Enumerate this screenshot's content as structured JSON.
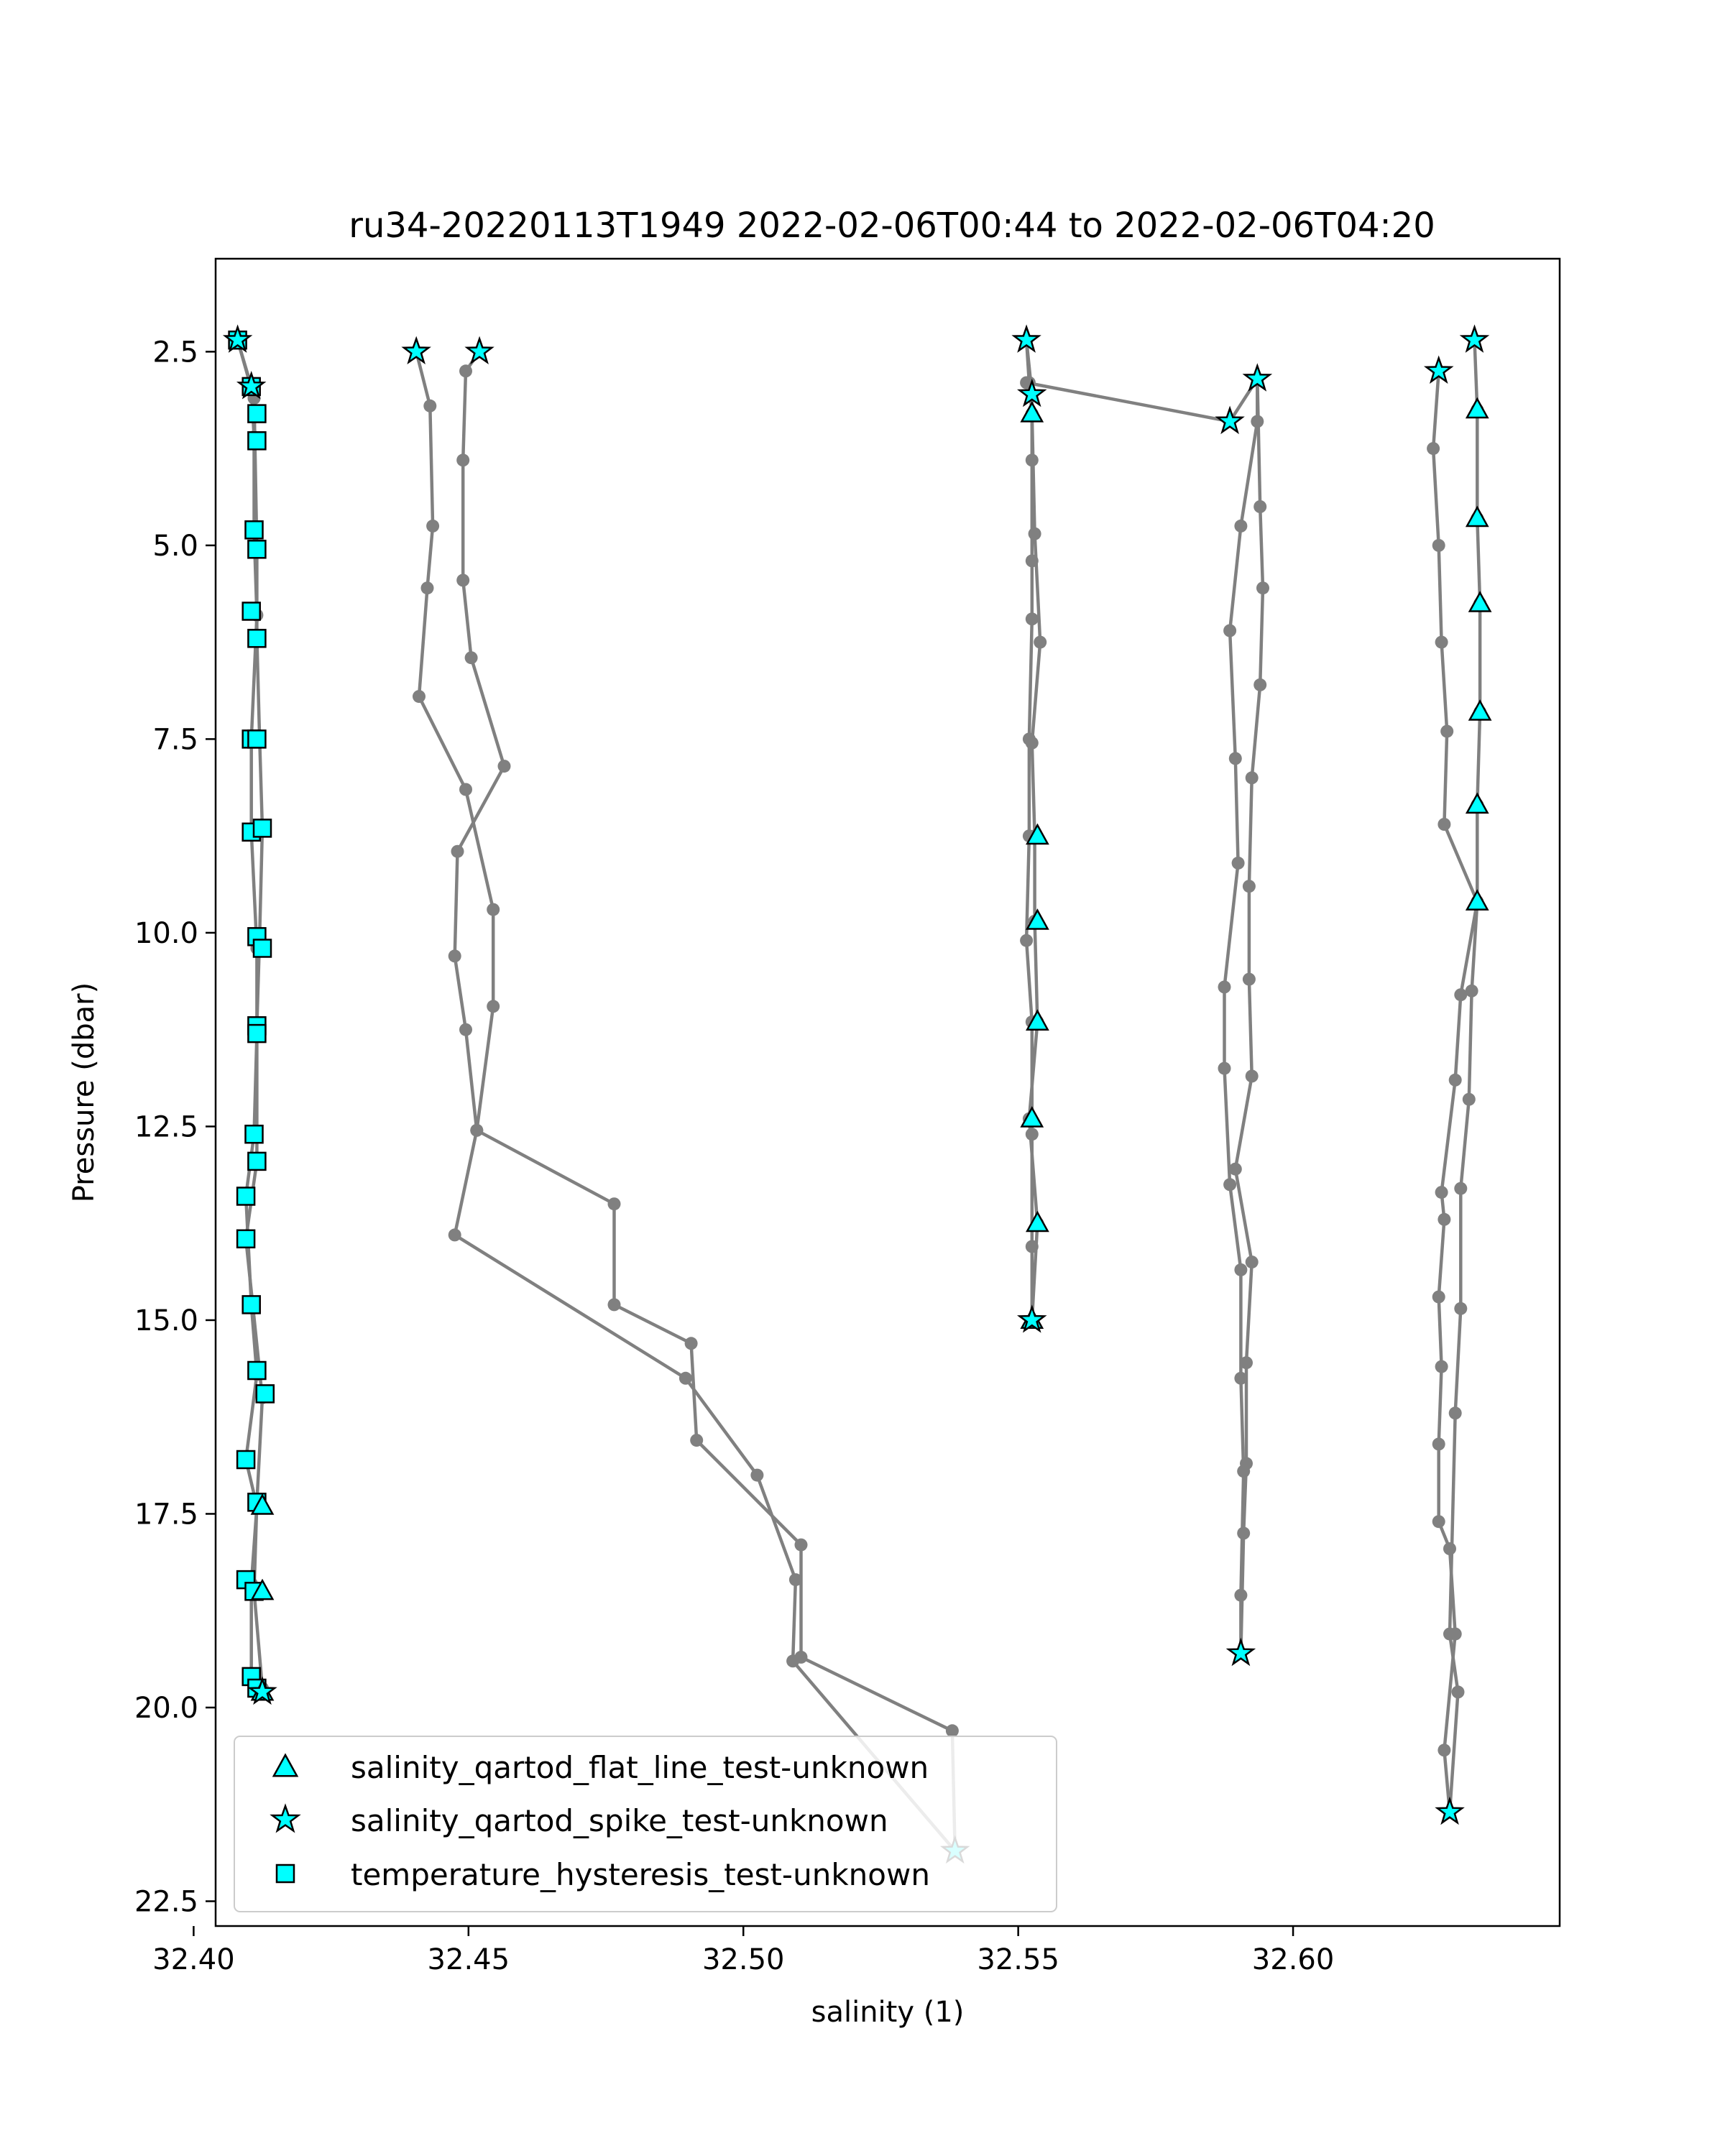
{
  "chart_data": {
    "type": "line",
    "title": "ru34-20220113T1949 2022-02-06T00:44 to 2022-02-06T04:20",
    "xlabel": "salinity (1)",
    "ylabel": "Pressure (dbar)",
    "xlim": [
      32.404,
      32.6485
    ],
    "ylim": [
      22.82,
      1.3
    ],
    "y_inverted": true,
    "grid": false,
    "xticks": [
      32.4,
      32.45,
      32.5,
      32.55,
      32.6
    ],
    "xtick_labels": [
      "32.40",
      "32.45",
      "32.50",
      "32.55",
      "32.60"
    ],
    "yticks": [
      2.5,
      5.0,
      7.5,
      10.0,
      12.5,
      15.0,
      17.5,
      20.0,
      22.5
    ],
    "ytick_labels": [
      "2.5",
      "5.0",
      "7.5",
      "10.0",
      "12.5",
      "15.0",
      "17.5",
      "20.0",
      "22.5"
    ],
    "line_color": "#808080",
    "marker_color": "#00ffff",
    "legend_position": "lower-left",
    "legend": [
      {
        "label": "salinity_qartod_flat_line_test-unknown",
        "marker": "triangle"
      },
      {
        "label": "salinity_qartod_spike_test-unknown",
        "marker": "star"
      },
      {
        "label": "temperature_hysteresis_test-unknown",
        "marker": "square"
      }
    ],
    "profiles": [
      {
        "points": [
          [
            32.408,
            2.35
          ],
          [
            32.4105,
            2.95
          ],
          [
            32.411,
            3.6
          ],
          [
            32.411,
            4.8
          ],
          [
            32.4115,
            5.9
          ],
          [
            32.4105,
            7.5
          ],
          [
            32.4105,
            8.7
          ],
          [
            32.4115,
            10.2
          ],
          [
            32.4115,
            11.3
          ],
          [
            32.411,
            12.6
          ],
          [
            32.4095,
            13.4
          ],
          [
            32.4105,
            14.8
          ],
          [
            32.4115,
            15.7
          ],
          [
            32.4095,
            16.8
          ],
          [
            32.4115,
            17.4
          ],
          [
            32.4105,
            18.4
          ],
          [
            32.4105,
            19.6
          ],
          [
            32.4125,
            19.8
          ]
        ]
      },
      {
        "points": [
          [
            32.408,
            2.35
          ],
          [
            32.411,
            3.1
          ],
          [
            32.4115,
            5.05
          ],
          [
            32.4115,
            6.2
          ],
          [
            32.412,
            7.5
          ],
          [
            32.4125,
            8.65
          ],
          [
            32.412,
            10.05
          ],
          [
            32.4115,
            11.2
          ],
          [
            32.4115,
            12.95
          ],
          [
            32.4095,
            13.95
          ],
          [
            32.4125,
            16.0
          ],
          [
            32.4115,
            17.35
          ],
          [
            32.411,
            18.5
          ],
          [
            32.4125,
            19.75
          ]
        ]
      },
      {
        "points": [
          [
            32.4405,
            2.5
          ],
          [
            32.443,
            3.2
          ],
          [
            32.4435,
            4.75
          ],
          [
            32.4425,
            5.55
          ],
          [
            32.441,
            6.95
          ],
          [
            32.4495,
            8.15
          ],
          [
            32.4545,
            9.7
          ],
          [
            32.4545,
            10.95
          ],
          [
            32.4515,
            12.55
          ],
          [
            32.4765,
            13.5
          ],
          [
            32.4765,
            14.8
          ],
          [
            32.4905,
            15.3
          ],
          [
            32.4915,
            16.55
          ],
          [
            32.5105,
            17.9
          ],
          [
            32.5105,
            19.35
          ],
          [
            32.538,
            20.3
          ],
          [
            32.5385,
            21.85
          ]
        ]
      },
      {
        "points": [
          [
            32.452,
            2.5
          ],
          [
            32.4495,
            2.75
          ],
          [
            32.449,
            3.9
          ],
          [
            32.449,
            5.45
          ],
          [
            32.4505,
            6.45
          ],
          [
            32.4565,
            7.85
          ],
          [
            32.448,
            8.95
          ],
          [
            32.4475,
            10.3
          ],
          [
            32.4495,
            11.25
          ],
          [
            32.4515,
            12.55
          ],
          [
            32.4475,
            13.9
          ],
          [
            32.4895,
            15.75
          ],
          [
            32.5025,
            17.0
          ],
          [
            32.5095,
            18.35
          ],
          [
            32.509,
            19.4
          ],
          [
            32.5385,
            21.85
          ]
        ]
      },
      {
        "points": [
          [
            32.5515,
            2.35
          ],
          [
            32.5525,
            3.05
          ],
          [
            32.5525,
            3.9
          ],
          [
            32.5525,
            5.2
          ],
          [
            32.5525,
            5.95
          ],
          [
            32.552,
            7.5
          ],
          [
            32.552,
            8.75
          ],
          [
            32.5515,
            10.1
          ],
          [
            32.5525,
            11.15
          ],
          [
            32.5525,
            12.6
          ],
          [
            32.5525,
            14.05
          ],
          [
            32.5525,
            15.0
          ]
        ]
      },
      {
        "points": [
          [
            32.5515,
            2.35
          ],
          [
            32.552,
            2.9
          ],
          [
            32.5525,
            3.3
          ],
          [
            32.553,
            4.85
          ],
          [
            32.554,
            6.25
          ],
          [
            32.5525,
            7.55
          ],
          [
            32.553,
            8.75
          ],
          [
            32.553,
            9.85
          ],
          [
            32.5535,
            11.15
          ],
          [
            32.552,
            12.4
          ],
          [
            32.5535,
            13.75
          ],
          [
            32.5525,
            15.0
          ]
        ]
      },
      {
        "points": [
          [
            32.5515,
            2.9
          ],
          [
            32.5885,
            3.4
          ],
          [
            32.5935,
            2.85
          ],
          [
            32.594,
            4.5
          ],
          [
            32.5945,
            5.55
          ],
          [
            32.594,
            6.8
          ],
          [
            32.5925,
            8.0
          ],
          [
            32.592,
            9.4
          ],
          [
            32.592,
            10.6
          ],
          [
            32.5925,
            11.85
          ],
          [
            32.5895,
            13.05
          ],
          [
            32.5925,
            14.25
          ],
          [
            32.5915,
            15.55
          ],
          [
            32.5915,
            16.85
          ],
          [
            32.591,
            17.75
          ],
          [
            32.5905,
            19.3
          ]
        ]
      },
      {
        "points": [
          [
            32.5935,
            2.85
          ],
          [
            32.5935,
            3.4
          ],
          [
            32.5905,
            4.75
          ],
          [
            32.5885,
            6.1
          ],
          [
            32.5895,
            7.75
          ],
          [
            32.59,
            9.1
          ],
          [
            32.5875,
            10.7
          ],
          [
            32.5875,
            11.75
          ],
          [
            32.5885,
            13.25
          ],
          [
            32.5905,
            14.35
          ],
          [
            32.5905,
            15.75
          ],
          [
            32.591,
            16.95
          ],
          [
            32.5905,
            18.55
          ],
          [
            32.5905,
            19.3
          ]
        ]
      },
      {
        "points": [
          [
            32.6265,
            2.75
          ],
          [
            32.6255,
            3.75
          ],
          [
            32.6265,
            5.0
          ],
          [
            32.627,
            6.25
          ],
          [
            32.628,
            7.4
          ],
          [
            32.6275,
            8.6
          ],
          [
            32.6335,
            9.6
          ],
          [
            32.6305,
            10.8
          ],
          [
            32.6295,
            11.9
          ],
          [
            32.627,
            13.35
          ],
          [
            32.6275,
            13.7
          ],
          [
            32.6265,
            14.7
          ],
          [
            32.627,
            15.6
          ],
          [
            32.6265,
            16.6
          ],
          [
            32.6265,
            17.6
          ],
          [
            32.6285,
            17.95
          ],
          [
            32.6295,
            19.05
          ],
          [
            32.6275,
            20.55
          ],
          [
            32.6285,
            21.35
          ]
        ]
      },
      {
        "points": [
          [
            32.633,
            2.35
          ],
          [
            32.6335,
            3.25
          ],
          [
            32.6335,
            4.65
          ],
          [
            32.634,
            5.75
          ],
          [
            32.634,
            7.15
          ],
          [
            32.6335,
            8.35
          ],
          [
            32.6335,
            9.6
          ],
          [
            32.6325,
            10.75
          ],
          [
            32.632,
            12.15
          ],
          [
            32.6305,
            13.3
          ],
          [
            32.6305,
            14.85
          ],
          [
            32.6295,
            16.2
          ],
          [
            32.6285,
            19.05
          ],
          [
            32.63,
            19.8
          ],
          [
            32.6285,
            21.35
          ]
        ]
      }
    ],
    "flat_line_markers": [
      [
        32.5525,
        3.3
      ],
      [
        32.5535,
        8.75
      ],
      [
        32.5535,
        9.85
      ],
      [
        32.5535,
        11.15
      ],
      [
        32.5525,
        12.4
      ],
      [
        32.5535,
        13.75
      ],
      [
        32.5525,
        15.0
      ],
      [
        32.6335,
        3.25
      ],
      [
        32.6335,
        4.65
      ],
      [
        32.634,
        5.75
      ],
      [
        32.634,
        7.15
      ],
      [
        32.6335,
        8.35
      ],
      [
        32.6335,
        9.6
      ],
      [
        32.4125,
        17.4
      ],
      [
        32.4125,
        18.5
      ],
      [
        32.4125,
        19.8
      ]
    ],
    "spike_markers": [
      [
        32.408,
        2.35
      ],
      [
        32.4105,
        2.95
      ],
      [
        32.4405,
        2.5
      ],
      [
        32.452,
        2.5
      ],
      [
        32.5515,
        2.35
      ],
      [
        32.5525,
        3.05
      ],
      [
        32.5885,
        3.4
      ],
      [
        32.5935,
        2.85
      ],
      [
        32.6265,
        2.75
      ],
      [
        32.633,
        2.35
      ],
      [
        32.5525,
        15.0
      ],
      [
        32.5905,
        19.3
      ],
      [
        32.6285,
        21.35
      ],
      [
        32.5385,
        21.85
      ],
      [
        32.4125,
        19.8
      ]
    ],
    "hysteresis_markers": [
      [
        32.408,
        2.35
      ],
      [
        32.4105,
        2.95
      ],
      [
        32.4115,
        3.3
      ],
      [
        32.4115,
        3.65
      ],
      [
        32.411,
        4.8
      ],
      [
        32.4115,
        5.05
      ],
      [
        32.4105,
        5.85
      ],
      [
        32.4115,
        6.2
      ],
      [
        32.4105,
        7.5
      ],
      [
        32.4115,
        7.5
      ],
      [
        32.4105,
        8.7
      ],
      [
        32.4125,
        8.65
      ],
      [
        32.4115,
        10.05
      ],
      [
        32.4125,
        10.2
      ],
      [
        32.4115,
        11.2
      ],
      [
        32.4115,
        11.3
      ],
      [
        32.411,
        12.6
      ],
      [
        32.4115,
        12.95
      ],
      [
        32.4095,
        13.4
      ],
      [
        32.4095,
        13.95
      ],
      [
        32.4105,
        14.8
      ],
      [
        32.4115,
        15.65
      ],
      [
        32.413,
        15.95
      ],
      [
        32.4095,
        16.8
      ],
      [
        32.4115,
        17.35
      ],
      [
        32.4095,
        18.35
      ],
      [
        32.411,
        18.5
      ],
      [
        32.4105,
        19.6
      ],
      [
        32.4115,
        19.75
      ]
    ]
  }
}
